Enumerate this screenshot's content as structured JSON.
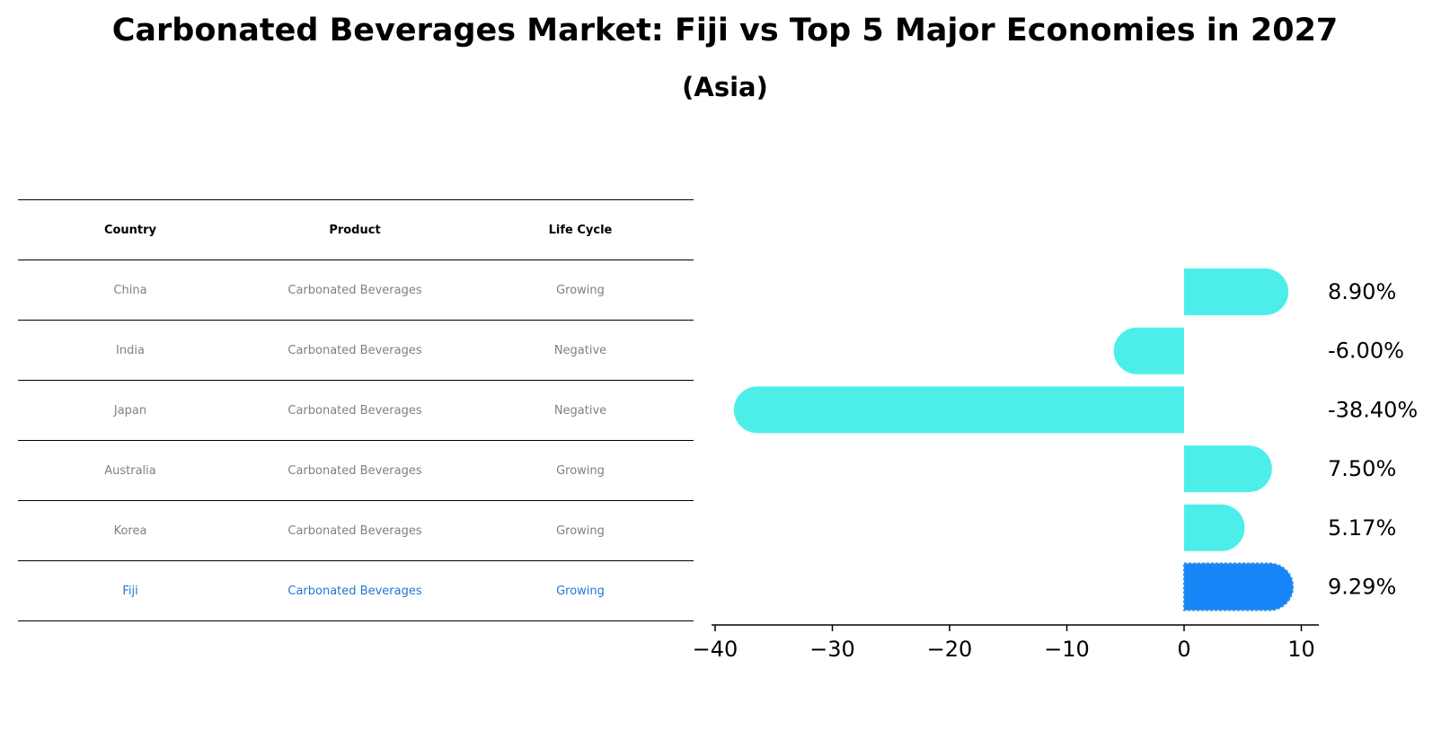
{
  "title": "Carbonated Beverages Market: Fiji vs Top 5 Major Economies in 2027",
  "subtitle": "(Asia)",
  "table": {
    "headers": [
      "Country",
      "Product",
      "Life Cycle"
    ],
    "rows": [
      {
        "country": "China",
        "product": "Carbonated Beverages",
        "life_cycle": "Growing"
      },
      {
        "country": "India",
        "product": "Carbonated Beverages",
        "life_cycle": "Negative"
      },
      {
        "country": "Japan",
        "product": "Carbonated Beverages",
        "life_cycle": "Negative"
      },
      {
        "country": "Australia",
        "product": "Carbonated Beverages",
        "life_cycle": "Growing"
      },
      {
        "country": "Korea",
        "product": "Carbonated Beverages",
        "life_cycle": "Growing"
      },
      {
        "country": "Fiji",
        "product": "Carbonated Beverages",
        "life_cycle": "Growing"
      }
    ],
    "highlight_country": "Fiji"
  },
  "chart_data": {
    "type": "bar",
    "orientation": "horizontal",
    "categories": [
      "China",
      "India",
      "Japan",
      "Australia",
      "Korea",
      "Fiji"
    ],
    "values": [
      8.9,
      -6.0,
      -38.4,
      7.5,
      5.17,
      9.29
    ],
    "value_labels": [
      "8.90%",
      "-6.00%",
      "-38.40%",
      "7.50%",
      "5.17%",
      "9.29%"
    ],
    "xticks": [
      "−40",
      "−30",
      "−20",
      "−10",
      "0",
      "10"
    ],
    "xtick_values": [
      -40,
      -30,
      -20,
      -10,
      0,
      10
    ],
    "xlim": [
      -41,
      11.5
    ],
    "grid": false,
    "colors": {
      "default": "#4deeea",
      "highlight": "#1585f7"
    },
    "highlight_category": "Fiji"
  }
}
